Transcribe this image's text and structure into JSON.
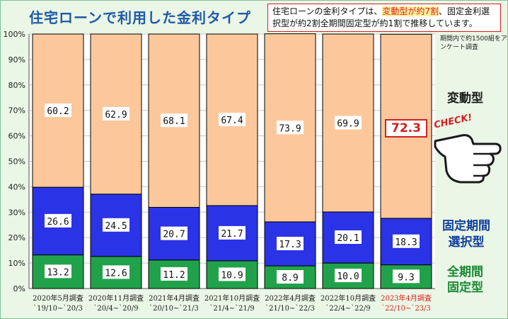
{
  "header": {
    "title": "住宅ローンで利用した金利タイプ"
  },
  "note": {
    "part1": "住宅ローンの金利タイプは、",
    "highlight": "変動型が約7割",
    "part2": "、固定金利選択型が約2割全期間固定型が約1割で推移しています。",
    "highlight_color": "#e0201a"
  },
  "survey_note": "期間内で約1500組をアンケート調査",
  "legend_labels": {
    "variable": "変動型",
    "fixed_selection_line1": "固定期間",
    "fixed_selection_line2": "選択型",
    "full_fixed_line1": "全期間",
    "full_fixed_line2": "固定型"
  },
  "callout": {
    "value": "72.3",
    "check_label": "CHECK!",
    "icon": "pointing-hand-icon"
  },
  "colors": {
    "variable": "#fcc89b",
    "fixed_selection": "#2b33e6",
    "full_fixed": "#21a24a",
    "highlight_label": "#e0201a",
    "title": "#1e5aa8"
  },
  "chart_data": {
    "type": "bar",
    "stacked": true,
    "categories": [
      [
        "2020年5月調査",
        "`19/10~`20/3"
      ],
      [
        "2020年11月調査",
        "`20/4~`20/9"
      ],
      [
        "2021年4月調査",
        "`20/10~`21/3"
      ],
      [
        "2021年10月調査",
        "`21/4~`21/9"
      ],
      [
        "2022年4月調査",
        "`21/10~`22/3"
      ],
      [
        "2022年10月調査",
        "`22/4~`22/9"
      ],
      [
        "2023年4月調査",
        "`22/10~`23/3"
      ]
    ],
    "highlight_category_index": 6,
    "series": [
      {
        "name": "全期間固定型",
        "values": [
          13.2,
          12.6,
          11.2,
          10.9,
          8.9,
          10.0,
          9.3
        ]
      },
      {
        "name": "固定期間選択型",
        "values": [
          26.6,
          24.5,
          20.7,
          21.7,
          17.3,
          20.1,
          18.3
        ]
      },
      {
        "name": "変動型",
        "values": [
          60.2,
          62.9,
          68.1,
          67.4,
          73.9,
          69.9,
          72.3
        ]
      }
    ],
    "value_labels": [
      [
        "13.2",
        "12.6",
        "11.2",
        "10.9",
        "8.9",
        "10.0",
        "9.3"
      ],
      [
        "26.6",
        "24.5",
        "20.7",
        "21.7",
        "17.3",
        "20.1",
        "18.3"
      ],
      [
        "60.2",
        "62.9",
        "68.1",
        "67.4",
        "73.9",
        "69.9",
        ""
      ]
    ],
    "yticks": [
      "0%",
      "10%",
      "20%",
      "30%",
      "40%",
      "50%",
      "60%",
      "70%",
      "80%",
      "90%",
      "100%"
    ],
    "ylim": [
      0,
      100
    ],
    "grid": true
  }
}
